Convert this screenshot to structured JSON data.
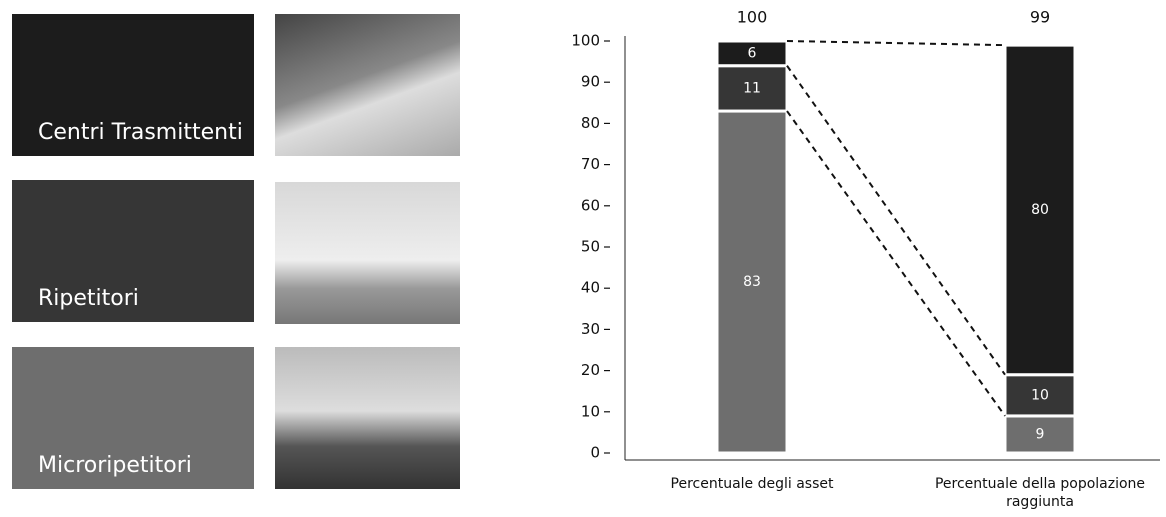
{
  "chart_data": {
    "type": "stacked-bar",
    "categories": [
      "Percentuale degli asset",
      "Percentuale della popolazione raggiunta"
    ],
    "series": [
      {
        "name": "Microripetitori",
        "color": "#6e6e6e",
        "values": [
          83,
          9
        ]
      },
      {
        "name": "Ripetitori",
        "color": "#363636",
        "values": [
          11,
          10
        ]
      },
      {
        "name": "Centri Trasmittenti",
        "color": "#1c1c1c",
        "values": [
          6,
          80
        ]
      }
    ],
    "totals": [
      100,
      99
    ],
    "ylim": [
      0,
      100
    ],
    "yticks": [
      0,
      10,
      20,
      30,
      40,
      50,
      60,
      70,
      80,
      90,
      100
    ],
    "connectors": true
  }
}
